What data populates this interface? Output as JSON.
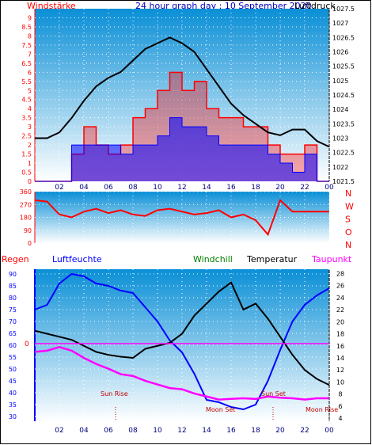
{
  "header": {
    "wind_label": "Windstärke",
    "title": "24 hour graph day : 10 September 2020",
    "pressure_label": "Luftdruck"
  },
  "hours": [
    "02",
    "04",
    "06",
    "08",
    "10",
    "12",
    "14",
    "16",
    "18",
    "20",
    "22",
    "00"
  ],
  "colors": {
    "wind": "#ff0000",
    "gust": "#0000ff",
    "pressure": "#000000",
    "humidity": "#0000ff",
    "temperature": "#000000",
    "dewpoint": "#ff00ff",
    "rain": "#ff0000",
    "windchill": "#008000",
    "bg_top": "#0a8fd6",
    "bg_bottom": "#ffffff"
  },
  "legend": {
    "regen": "Regen",
    "luftfeuchte": "Luftfeuchte",
    "windchill": "Windchill",
    "temperatur": "Temperatur",
    "taupunkt": "Taupunkt"
  },
  "direction_labels": [
    "N",
    "W",
    "S",
    "O",
    "N"
  ],
  "annotations": {
    "sun_rise": "Sun Rise",
    "sun_set": "Sun Set",
    "moon_set": "Moon Set",
    "moon_rise": "Moon Rise",
    "rain_zero": "0"
  },
  "chart_data": [
    {
      "type": "line",
      "title": "24 hour graph day : 10 September 2020",
      "left_axis": {
        "label": "Windstärke",
        "ticks": [
          "0",
          "0.5",
          "1",
          "1.5",
          "2",
          "2.5",
          "3",
          "3.5",
          "4",
          "4.5",
          "5",
          "5.5",
          "6",
          "6.5",
          "7",
          "7.5",
          "8",
          "8.5",
          "9"
        ],
        "range": [
          0,
          9.5
        ]
      },
      "right_axis": {
        "label": "Luftdruck",
        "ticks": [
          "1021.5",
          "1022",
          "1022.5",
          "1023",
          "1023.5",
          "1024",
          "1024.5",
          "1025",
          "1025.5",
          "1026",
          "1026.5",
          "1027",
          "1027.5"
        ],
        "range": [
          1021.5,
          1027.5
        ]
      },
      "x_ticks": [
        "02",
        "04",
        "06",
        "08",
        "10",
        "12",
        "14",
        "16",
        "18",
        "20",
        "22",
        "00"
      ],
      "series": [
        {
          "name": "Luftdruck",
          "x": [
            0,
            1,
            2,
            3,
            4,
            5,
            6,
            7,
            8,
            9,
            10,
            11,
            12,
            13,
            14,
            15,
            16,
            17,
            18,
            19,
            20,
            21,
            22,
            23,
            24
          ],
          "values": [
            1023.0,
            1023.0,
            1023.2,
            1023.7,
            1024.3,
            1024.8,
            1025.1,
            1025.3,
            1025.7,
            1026.1,
            1026.3,
            1026.5,
            1026.3,
            1026.0,
            1025.4,
            1024.8,
            1024.2,
            1023.8,
            1023.5,
            1023.2,
            1023.1,
            1023.3,
            1023.3,
            1022.9,
            1022.7
          ]
        },
        {
          "name": "Windstärke",
          "x": [
            0,
            1,
            2,
            3,
            4,
            5,
            6,
            7,
            8,
            9,
            10,
            11,
            12,
            13,
            14,
            15,
            16,
            17,
            18,
            19,
            20,
            21,
            22,
            23,
            24
          ],
          "values": [
            0,
            0,
            0,
            1.5,
            3,
            2,
            1.5,
            2,
            3.5,
            4,
            5,
            6,
            5,
            5.5,
            4,
            3.5,
            3.5,
            3,
            3,
            2,
            1.5,
            1.5,
            2,
            0,
            0
          ]
        },
        {
          "name": "Windböen",
          "x": [
            0,
            1,
            2,
            3,
            4,
            5,
            6,
            7,
            8,
            9,
            10,
            11,
            12,
            13,
            14,
            15,
            16,
            17,
            18,
            19,
            20,
            21,
            22,
            23,
            24
          ],
          "values": [
            0,
            0,
            0,
            2,
            2,
            2,
            2,
            1.5,
            2,
            2,
            2.5,
            3.5,
            3,
            3,
            2.5,
            2,
            2,
            2,
            2,
            1.5,
            1,
            0.5,
            1.5,
            0,
            0
          ]
        }
      ]
    },
    {
      "type": "line",
      "title": "",
      "left_axis": {
        "ticks": [
          "0",
          "90",
          "180",
          "270",
          "360"
        ],
        "range": [
          0,
          360
        ]
      },
      "series": [
        {
          "name": "Windrichtung",
          "x": [
            0,
            1,
            2,
            3,
            4,
            5,
            6,
            7,
            8,
            9,
            10,
            11,
            12,
            13,
            14,
            15,
            16,
            17,
            18,
            19,
            20,
            21,
            22,
            23,
            24
          ],
          "values": [
            300,
            290,
            200,
            180,
            220,
            240,
            210,
            230,
            200,
            190,
            230,
            240,
            220,
            200,
            210,
            230,
            180,
            200,
            160,
            60,
            300,
            220,
            220,
            220,
            220
          ]
        }
      ]
    },
    {
      "type": "line",
      "title": "",
      "left_axis": {
        "label": "Luftfeuchte",
        "ticks": [
          "30",
          "35",
          "40",
          "45",
          "50",
          "55",
          "60",
          "65",
          "70",
          "75",
          "80",
          "85",
          "90"
        ],
        "range": [
          28,
          92
        ]
      },
      "right_axis": {
        "label": "Temperatur",
        "ticks": [
          "4",
          "6",
          "8",
          "10",
          "12",
          "14",
          "16",
          "18",
          "20",
          "22",
          "24",
          "26",
          "28"
        ],
        "range": [
          3.5,
          28.7
        ]
      },
      "x_ticks": [
        "02",
        "04",
        "06",
        "08",
        "10",
        "12",
        "14",
        "16",
        "18",
        "20",
        "22",
        "00"
      ],
      "series": [
        {
          "name": "Luftfeuchte",
          "x": [
            0,
            1,
            2,
            3,
            4,
            5,
            6,
            7,
            8,
            9,
            10,
            11,
            12,
            13,
            14,
            15,
            16,
            17,
            18,
            19,
            20,
            21,
            22,
            23,
            24
          ],
          "values": [
            75,
            77,
            86,
            90,
            89,
            86,
            85,
            83,
            82,
            76,
            70,
            62,
            57,
            48,
            37,
            36,
            34,
            33,
            35,
            45,
            58,
            70,
            77,
            81,
            84
          ]
        },
        {
          "name": "Temperatur",
          "x": [
            0,
            1,
            2,
            3,
            4,
            5,
            6,
            7,
            8,
            9,
            10,
            11,
            12,
            13,
            14,
            15,
            16,
            17,
            18,
            19,
            20,
            21,
            22,
            23,
            24
          ],
          "values": [
            18.5,
            18,
            17.5,
            17,
            16,
            15,
            14.5,
            14.2,
            14,
            15.5,
            16,
            16.5,
            18,
            21,
            23,
            25,
            26.5,
            22,
            23,
            20.5,
            17.5,
            14.5,
            12,
            10.5,
            9.5
          ]
        },
        {
          "name": "Taupunkt",
          "x": [
            0,
            1,
            2,
            3,
            4,
            5,
            6,
            7,
            8,
            9,
            10,
            11,
            12,
            13,
            14,
            15,
            16,
            17,
            18,
            19,
            20,
            21,
            22,
            23,
            24
          ],
          "values": [
            15,
            15.2,
            15.8,
            15.2,
            14,
            13,
            12.2,
            11.3,
            11,
            10.2,
            9.6,
            9,
            8.8,
            8.1,
            7.6,
            7.1,
            7.2,
            7.3,
            7.2,
            7.6,
            7.4,
            7.3,
            7.1,
            7.3,
            7.3
          ]
        }
      ]
    }
  ]
}
